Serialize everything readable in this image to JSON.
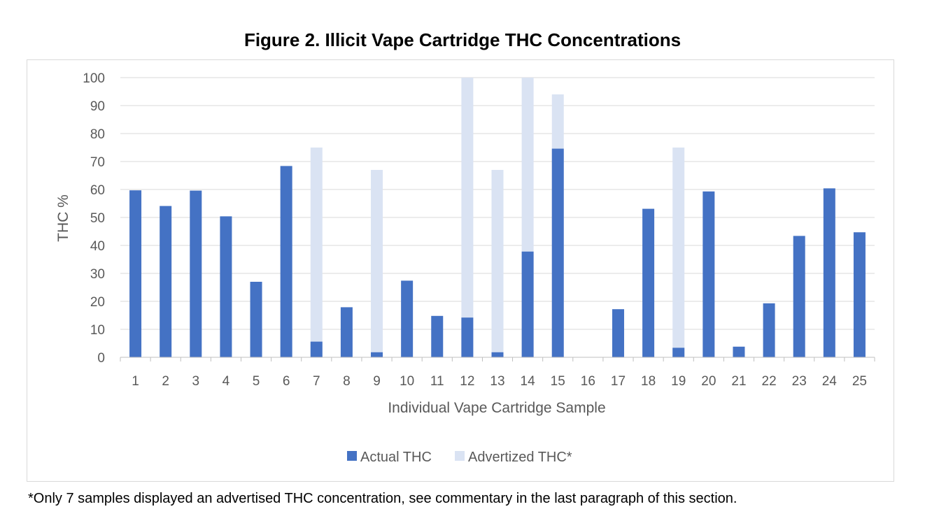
{
  "chart_data": {
    "type": "bar",
    "title": "Figure 2. Illicit Vape Cartridge THC Concentrations",
    "xlabel": "Individual Vape Cartridge Sample",
    "ylabel": "THC %",
    "ylim": [
      0,
      100
    ],
    "yticks": [
      0,
      10,
      20,
      30,
      40,
      50,
      60,
      70,
      80,
      90,
      100
    ],
    "grid": true,
    "legend_position": "bottom",
    "categories": [
      "1",
      "2",
      "3",
      "4",
      "5",
      "6",
      "7",
      "8",
      "9",
      "10",
      "11",
      "12",
      "13",
      "14",
      "15",
      "16",
      "17",
      "18",
      "19",
      "20",
      "21",
      "22",
      "23",
      "24",
      "25"
    ],
    "series": [
      {
        "name": "Actual THC",
        "color": "#4472c4",
        "values": [
          59.7,
          54.1,
          59.6,
          50.4,
          27.0,
          68.4,
          5.6,
          17.9,
          1.8,
          27.4,
          14.8,
          14.2,
          1.8,
          37.8,
          74.6,
          0,
          17.2,
          53.1,
          3.4,
          59.3,
          3.8,
          19.3,
          43.4,
          60.4,
          44.7
        ]
      },
      {
        "name": "Advertized THC*",
        "color": "#dae3f3",
        "values": [
          null,
          null,
          null,
          null,
          null,
          null,
          75,
          null,
          67,
          null,
          null,
          100,
          67,
          100,
          94,
          null,
          null,
          null,
          75,
          null,
          null,
          null,
          null,
          null,
          null
        ]
      }
    ]
  },
  "footnote": "*Only 7 samples displayed an advertised THC concentration, see commentary in the last paragraph of this section."
}
